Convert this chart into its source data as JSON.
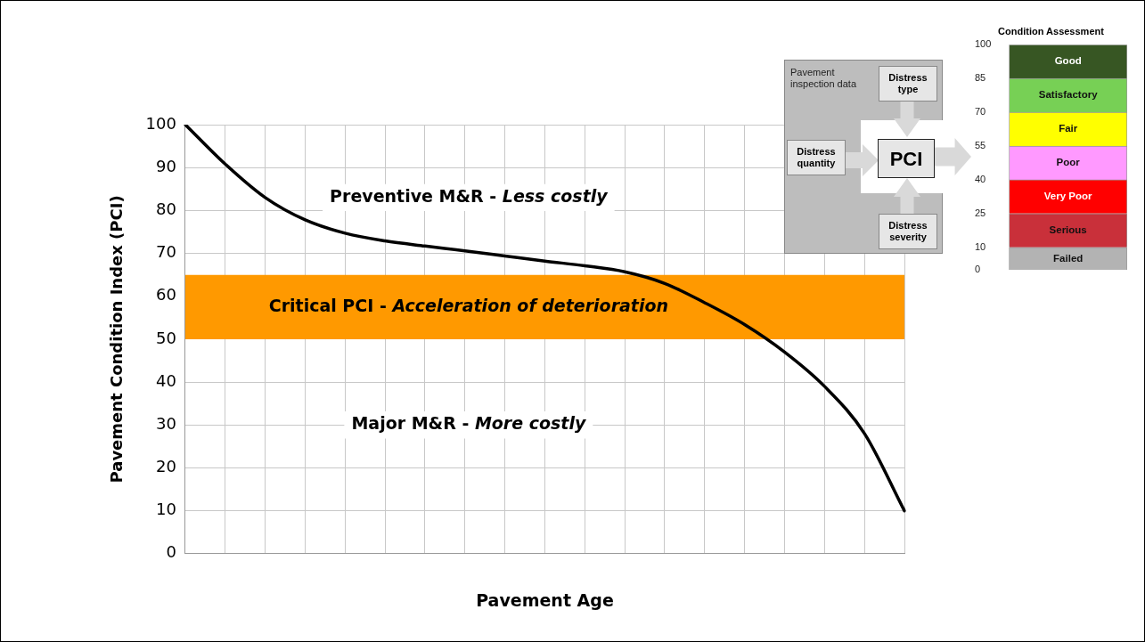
{
  "chart_data": [
    {
      "type": "line",
      "xlabel": "Pavement Age",
      "ylabel": "Pavement Condition Index (PCI)",
      "categories": [
        null,
        null,
        null,
        null,
        null,
        null,
        null,
        null,
        null,
        null,
        null,
        null,
        null,
        null,
        null,
        null,
        null,
        null,
        null
      ],
      "series": [
        {
          "color": "#000000",
          "values": [
            100,
            90.8,
            83,
            77.8,
            74.7,
            72.9,
            71.7,
            70.6,
            69.4,
            68.2,
            67.1,
            65.7,
            63,
            58.5,
            53.4,
            47,
            39,
            28,
            10
          ]
        }
      ],
      "ylim": [
        0,
        100
      ],
      "yticks": [
        0,
        10,
        20,
        30,
        40,
        50,
        60,
        70,
        80,
        90,
        100
      ],
      "grid": true,
      "marker": "none",
      "line_style": "solid",
      "legend": false,
      "bands": [
        {
          "axis": "y",
          "from": 50,
          "to": 65,
          "label": "Critical PCI - Acceleration of deterioration",
          "color": "#ff9900"
        }
      ],
      "annotations": [
        "Preventive M&R - Less costly",
        "Major M&R - More costly"
      ]
    },
    {
      "type": "bar",
      "stacked": true,
      "title": "Condition Assessment",
      "categories": [
        null
      ],
      "series": [
        {
          "name": "Failed",
          "color": "#b3b3b3",
          "values": [
            10
          ]
        },
        {
          "name": "Serious",
          "color": "#c9303a",
          "values": [
            15
          ]
        },
        {
          "name": "Very Poor",
          "color": "#ff0000",
          "values": [
            15
          ]
        },
        {
          "name": "Poor",
          "color": "#ff99ff",
          "values": [
            15
          ]
        },
        {
          "name": "Fair",
          "color": "#ffff00",
          "values": [
            15
          ]
        },
        {
          "name": "Satisfactory",
          "color": "#77d055",
          "values": [
            15
          ]
        },
        {
          "name": "Good",
          "color": "#375623",
          "values": [
            15
          ]
        }
      ],
      "ylim": [
        0,
        100
      ],
      "yticks": [
        0,
        10,
        25,
        40,
        55,
        70,
        85,
        100
      ],
      "grid": false,
      "annotations": [
        "Pavement inspection data",
        "Distress type",
        "Distress quantity",
        "PCI",
        "Distress severity"
      ]
    }
  ]
}
